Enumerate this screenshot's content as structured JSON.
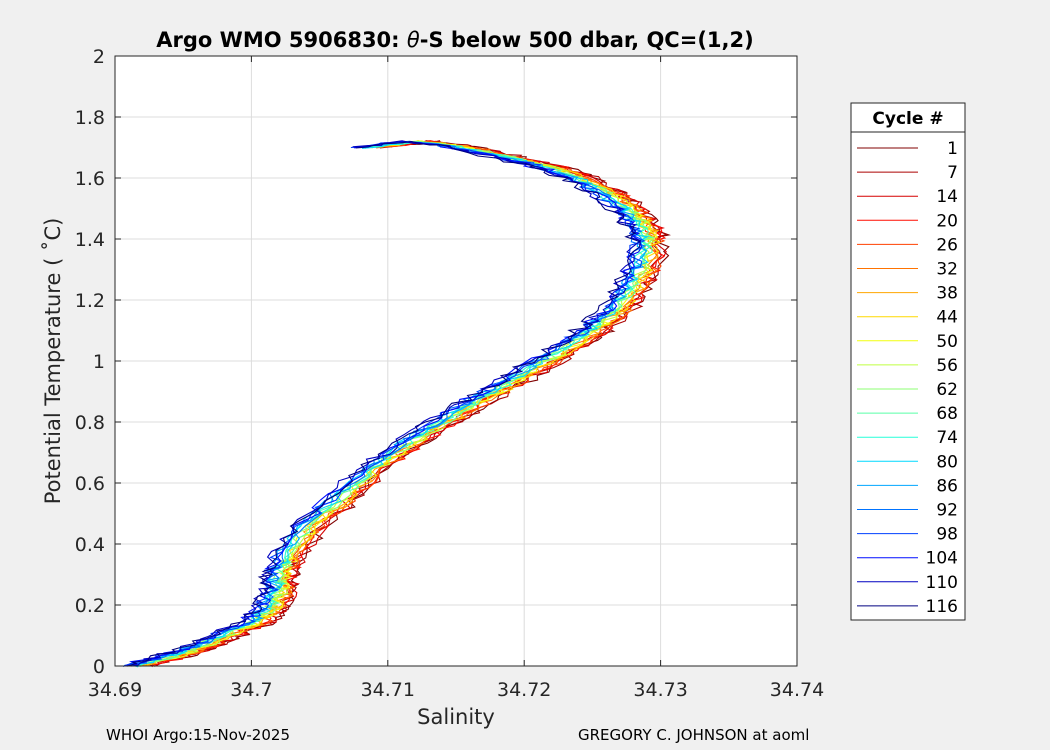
{
  "chart_data": {
    "type": "line",
    "title_parts": [
      "Argo WMO 5906830: ",
      "θ",
      "-S below 500 dbar,  QC=(1,2)"
    ],
    "xlabel": "Salinity",
    "ylabel": "Potential Temperature ( ˚C)",
    "xlim": [
      34.69,
      34.74
    ],
    "ylim": [
      0,
      2
    ],
    "xticks": [
      34.69,
      34.7,
      34.71,
      34.72,
      34.73,
      34.74
    ],
    "xtick_labels": [
      "34.69",
      "34.7",
      "34.71",
      "34.72",
      "34.73",
      "34.74"
    ],
    "yticks": [
      0,
      0.2,
      0.4,
      0.6,
      0.8,
      1,
      1.2,
      1.4,
      1.6,
      1.8,
      2
    ],
    "ytick_labels": [
      "0",
      "0.2",
      "0.4",
      "0.6",
      "0.8",
      "1",
      "1.2",
      "1.4",
      "1.6",
      "1.8",
      "2"
    ],
    "grid": true,
    "legend_title": "Cycle #",
    "legend_position": "outside-right",
    "profile_center": {
      "x": [
        34.6915,
        34.694,
        34.696,
        34.698,
        34.7005,
        34.7015,
        34.702,
        34.702,
        34.7025,
        34.704,
        34.7065,
        34.709,
        34.7115,
        34.714,
        34.7165,
        34.719,
        34.7215,
        34.724,
        34.7255,
        34.727,
        34.728,
        34.7288,
        34.729,
        34.7285,
        34.7275,
        34.726,
        34.724,
        34.7215,
        34.7185,
        34.7155,
        34.712,
        34.7085
      ],
      "y": [
        0.0,
        0.03,
        0.06,
        0.1,
        0.15,
        0.2,
        0.25,
        0.3,
        0.35,
        0.45,
        0.55,
        0.65,
        0.73,
        0.8,
        0.87,
        0.93,
        1.0,
        1.07,
        1.12,
        1.18,
        1.25,
        1.32,
        1.4,
        1.45,
        1.5,
        1.55,
        1.6,
        1.64,
        1.67,
        1.7,
        1.72,
        1.7
      ]
    },
    "series": [
      {
        "name": "1",
        "color": "#800000"
      },
      {
        "name": "7",
        "color": "#ab0000"
      },
      {
        "name": "14",
        "color": "#d60000"
      },
      {
        "name": "20",
        "color": "#ff0d00"
      },
      {
        "name": "26",
        "color": "#ff4000"
      },
      {
        "name": "32",
        "color": "#ff7300"
      },
      {
        "name": "38",
        "color": "#ffa600"
      },
      {
        "name": "44",
        "color": "#ffd900"
      },
      {
        "name": "50",
        "color": "#f2ff0d"
      },
      {
        "name": "56",
        "color": "#bfff40"
      },
      {
        "name": "62",
        "color": "#8cff73"
      },
      {
        "name": "68",
        "color": "#59ffa6"
      },
      {
        "name": "74",
        "color": "#26ffd9"
      },
      {
        "name": "80",
        "color": "#00d9ff"
      },
      {
        "name": "86",
        "color": "#00a6ff"
      },
      {
        "name": "92",
        "color": "#0073ff"
      },
      {
        "name": "98",
        "color": "#0040ff"
      },
      {
        "name": "104",
        "color": "#000dff"
      },
      {
        "name": "110",
        "color": "#0000c0"
      },
      {
        "name": "116",
        "color": "#000080"
      }
    ]
  },
  "footer": {
    "left": "WHOI Argo:15-Nov-2025",
    "right": "GREGORY C. JOHNSON at aoml"
  }
}
